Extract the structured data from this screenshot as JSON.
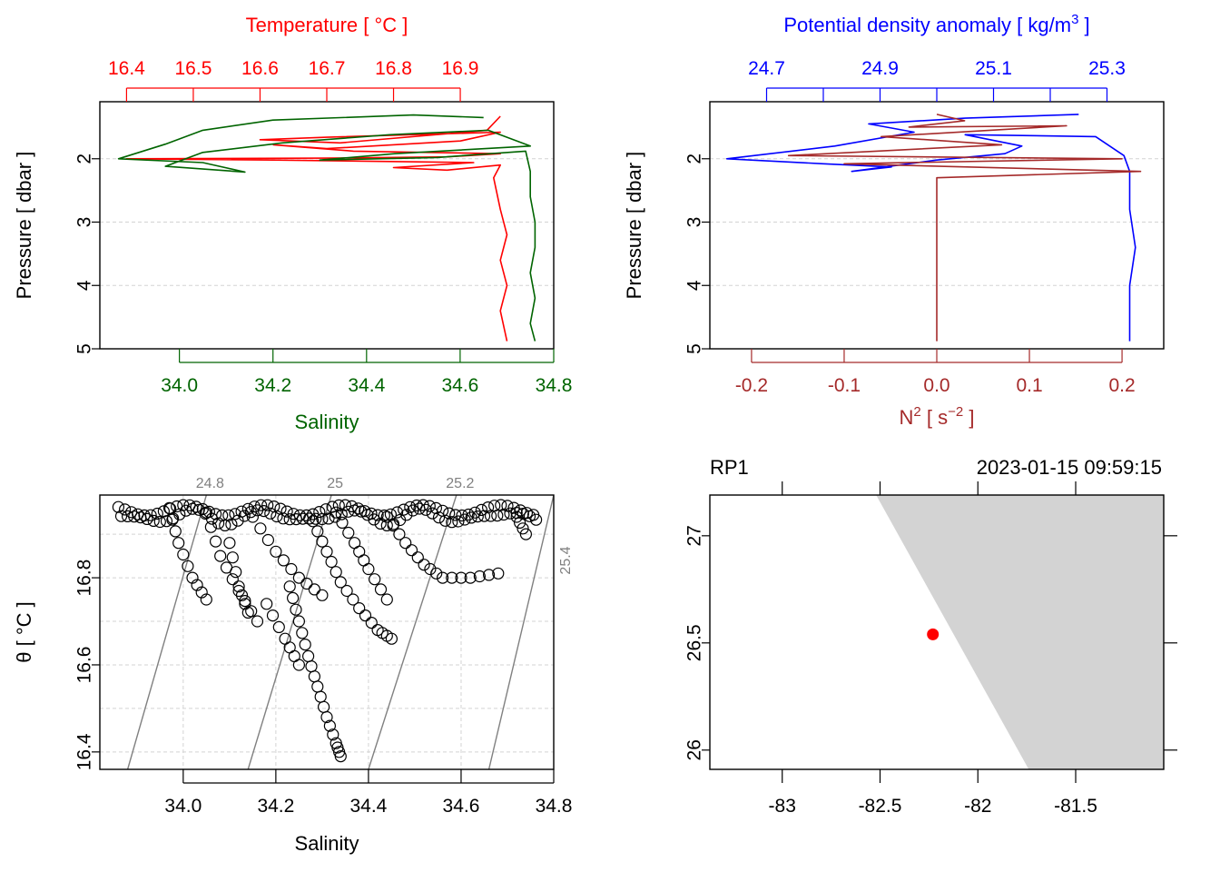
{
  "colors": {
    "temperature": "#ff0000",
    "salinity": "#006400",
    "density": "#0000ff",
    "n2": "#a52a2a",
    "grid": "#d3d3d3",
    "isopycnal": "#808080",
    "land": "#d3d3d3",
    "station": "#ff0000"
  },
  "chart_data": [
    {
      "id": "profile_ts",
      "type": "line",
      "ylabel": "Pressure [ dbar ]",
      "ylim": [
        5,
        1.1
      ],
      "y_ticks": [
        2,
        3,
        4,
        5
      ],
      "top_axis": {
        "label": "Temperature [ °C ]",
        "range": [
          16.36,
          17.04
        ],
        "ticks": [
          16.4,
          16.5,
          16.6,
          16.7,
          16.8,
          16.9
        ]
      },
      "bottom_axis": {
        "label": "Salinity",
        "range": [
          33.83,
          34.8
        ],
        "ticks": [
          34.0,
          34.2,
          34.4,
          34.6,
          34.8
        ]
      },
      "series": [
        {
          "name": "Temperature",
          "axis": "top",
          "points": [
            [
              16.96,
              1.33
            ],
            [
              16.94,
              1.55
            ],
            [
              16.72,
              1.75
            ],
            [
              16.6,
              1.7
            ],
            [
              16.7,
              1.66
            ],
            [
              16.96,
              1.58
            ],
            [
              16.9,
              1.72
            ],
            [
              16.7,
              1.84
            ],
            [
              16.62,
              1.78
            ],
            [
              16.74,
              1.88
            ],
            [
              16.96,
              1.92
            ],
            [
              16.88,
              1.97
            ],
            [
              16.7,
              1.99
            ],
            [
              16.4,
              2.0
            ],
            [
              16.62,
              2.02
            ],
            [
              16.92,
              2.06
            ],
            [
              16.8,
              2.14
            ],
            [
              16.88,
              2.18
            ],
            [
              16.96,
              2.1
            ],
            [
              16.95,
              2.3
            ],
            [
              16.96,
              2.8
            ],
            [
              16.97,
              3.2
            ],
            [
              16.96,
              3.6
            ],
            [
              16.97,
              4.0
            ],
            [
              16.96,
              4.4
            ],
            [
              16.97,
              4.88
            ]
          ]
        },
        {
          "name": "Salinity",
          "axis": "bottom",
          "points": [
            [
              34.65,
              1.35
            ],
            [
              34.5,
              1.31
            ],
            [
              34.2,
              1.39
            ],
            [
              34.05,
              1.55
            ],
            [
              33.97,
              1.77
            ],
            [
              33.87,
              2.0
            ],
            [
              34.05,
              2.06
            ],
            [
              34.14,
              2.21
            ],
            [
              33.97,
              2.12
            ],
            [
              34.05,
              1.9
            ],
            [
              34.22,
              1.75
            ],
            [
              34.45,
              1.62
            ],
            [
              34.66,
              1.55
            ],
            [
              34.75,
              1.8
            ],
            [
              34.46,
              1.92
            ],
            [
              34.3,
              2.02
            ],
            [
              34.55,
              1.98
            ],
            [
              34.74,
              1.88
            ],
            [
              34.75,
              2.2
            ],
            [
              34.75,
              2.6
            ],
            [
              34.76,
              3.0
            ],
            [
              34.76,
              3.4
            ],
            [
              34.75,
              3.8
            ],
            [
              34.76,
              4.2
            ],
            [
              34.75,
              4.6
            ],
            [
              34.76,
              4.88
            ]
          ]
        }
      ]
    },
    {
      "id": "profile_density",
      "type": "line",
      "ylabel": "Pressure [ dbar ]",
      "ylim": [
        5,
        1.1
      ],
      "y_ticks": [
        2,
        3,
        4,
        5
      ],
      "top_axis": {
        "label": "Potential density anomaly [ kg/m",
        "label_sup": "3",
        "label_end": " ]",
        "range": [
          24.6,
          25.4
        ],
        "ticks": [
          24.7,
          24.9,
          25.1,
          25.3
        ],
        "minor_ticks": [
          24.8,
          25.0,
          25.2
        ]
      },
      "bottom_axis": {
        "label": "N",
        "label_sup": "2",
        "label_rest": " [ s",
        "label_sup2": "−2",
        "label_end": " ]",
        "range": [
          -0.245,
          0.245
        ],
        "ticks": [
          -0.2,
          -0.1,
          0.0,
          0.1,
          0.2
        ]
      },
      "series": [
        {
          "name": "Potential density anomaly",
          "axis": "top",
          "points": [
            [
              25.25,
              1.3
            ],
            [
              25.05,
              1.36
            ],
            [
              24.88,
              1.45
            ],
            [
              24.96,
              1.58
            ],
            [
              24.82,
              1.8
            ],
            [
              24.63,
              2.0
            ],
            [
              24.8,
              2.08
            ],
            [
              24.92,
              2.13
            ],
            [
              24.85,
              2.2
            ],
            [
              25.0,
              2.02
            ],
            [
              25.12,
              1.92
            ],
            [
              25.15,
              1.8
            ],
            [
              25.05,
              1.62
            ],
            [
              25.28,
              1.65
            ],
            [
              25.33,
              1.95
            ],
            [
              25.34,
              2.2
            ],
            [
              25.34,
              2.8
            ],
            [
              25.35,
              3.4
            ],
            [
              25.34,
              4.0
            ],
            [
              25.34,
              4.6
            ],
            [
              25.34,
              4.88
            ]
          ]
        },
        {
          "name": "N2",
          "axis": "bottom",
          "points": [
            [
              0.0,
              1.3
            ],
            [
              0.03,
              1.4
            ],
            [
              -0.03,
              1.5
            ],
            [
              0.14,
              1.48
            ],
            [
              -0.06,
              1.65
            ],
            [
              0.07,
              1.78
            ],
            [
              -0.16,
              1.95
            ],
            [
              0.2,
              2.0
            ],
            [
              -0.1,
              2.08
            ],
            [
              0.22,
              2.2
            ],
            [
              0.0,
              2.3
            ],
            [
              0.0,
              3.0
            ],
            [
              0.0,
              4.0
            ],
            [
              0.0,
              4.88
            ]
          ]
        }
      ]
    },
    {
      "id": "ts_diagram",
      "type": "scatter",
      "xlabel": "Salinity",
      "ylabel": "θ [ °C ]",
      "xlim": [
        33.82,
        34.8
      ],
      "ylim": [
        16.36,
        16.99
      ],
      "x_ticks": [
        34.0,
        34.2,
        34.4,
        34.6,
        34.8
      ],
      "y_ticks": [
        16.4,
        16.6,
        16.8
      ],
      "isopycnals": [
        {
          "label": "24.8",
          "bottom_x": 33.88,
          "top_x": 34.05
        },
        {
          "label": "25",
          "bottom_x": 34.14,
          "top_x": 34.32
        },
        {
          "label": "25.2",
          "bottom_x": 34.4,
          "top_x": 34.59
        },
        {
          "label": "25.4",
          "bottom_x": 34.66,
          "top_x": 34.8
        }
      ],
      "sample_paths": [
        [
          [
            33.97,
            16.96
          ],
          [
            33.99,
            16.88
          ],
          [
            34.02,
            16.8
          ],
          [
            34.05,
            16.75
          ]
        ],
        [
          [
            34.05,
            16.95
          ],
          [
            34.08,
            16.85
          ],
          [
            34.12,
            16.77
          ],
          [
            34.16,
            16.7
          ]
        ],
        [
          [
            34.15,
            16.94
          ],
          [
            34.2,
            16.86
          ],
          [
            34.25,
            16.8
          ],
          [
            34.3,
            16.76
          ]
        ],
        [
          [
            34.28,
            16.93
          ],
          [
            34.31,
            16.86
          ],
          [
            34.34,
            16.79
          ],
          [
            34.38,
            16.73
          ],
          [
            34.42,
            16.68
          ],
          [
            34.45,
            16.66
          ]
        ],
        [
          [
            34.33,
            16.95
          ],
          [
            34.37,
            16.88
          ],
          [
            34.4,
            16.82
          ],
          [
            34.44,
            16.75
          ]
        ],
        [
          [
            34.44,
            16.94
          ],
          [
            34.48,
            16.88
          ],
          [
            34.52,
            16.83
          ],
          [
            34.56,
            16.8
          ],
          [
            34.62,
            16.8
          ],
          [
            34.68,
            16.81
          ]
        ],
        [
          [
            34.23,
            16.78
          ],
          [
            34.25,
            16.7
          ],
          [
            34.27,
            16.62
          ],
          [
            34.29,
            16.55
          ],
          [
            34.31,
            16.48
          ],
          [
            34.33,
            16.42
          ],
          [
            34.34,
            16.39
          ]
        ],
        [
          [
            34.1,
            16.88
          ],
          [
            34.12,
            16.78
          ],
          [
            34.14,
            16.72
          ]
        ],
        [
          [
            34.18,
            16.74
          ],
          [
            34.22,
            16.66
          ],
          [
            34.25,
            16.6
          ]
        ],
        [
          [
            34.72,
            16.94
          ],
          [
            34.74,
            16.9
          ]
        ]
      ],
      "surface_band": {
        "x_range": [
          33.86,
          34.76
        ],
        "y_range": [
          16.93,
          16.98
        ]
      }
    },
    {
      "id": "station_map",
      "type": "map",
      "station": "RP1",
      "datetime": "2023-01-15 09:59:15",
      "xlim": [
        -83.37,
        -81.05
      ],
      "ylim": [
        25.91,
        27.19
      ],
      "x_ticks": [
        -83,
        -82.5,
        -82,
        -81.5
      ],
      "y_ticks": [
        26,
        26.5,
        27
      ],
      "land": [
        [
          -82.52,
          27.19
        ],
        [
          -81.05,
          27.19
        ],
        [
          -81.05,
          25.91
        ],
        [
          -81.74,
          25.91
        ]
      ],
      "station_point": [
        -82.23,
        26.54
      ]
    }
  ]
}
